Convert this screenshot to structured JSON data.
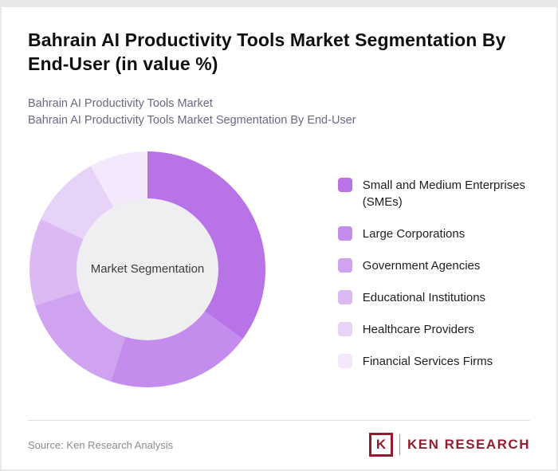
{
  "page": {
    "title": "Bahrain AI Productivity Tools Market Segmentation By End-User (in value %)",
    "subtitle_line1": "Bahrain AI Productivity Tools Market",
    "subtitle_line2": "Bahrain AI Productivity Tools Market Segmentation By End-User"
  },
  "chart_data": {
    "type": "pie",
    "variant": "donut",
    "title": "Bahrain AI Productivity Tools Market Segmentation By End-User (in value %)",
    "center_label": "Market Segmentation",
    "center_color": "#efeff1",
    "legend_position": "right",
    "data_labels_shown": false,
    "series": [
      {
        "name": "Small and Medium Enterprises (SMEs)",
        "value": 35,
        "color": "#b873e6"
      },
      {
        "name": "Large Corporations",
        "value": 20,
        "color": "#c48cec"
      },
      {
        "name": "Government Agencies",
        "value": 15,
        "color": "#cfa3f0"
      },
      {
        "name": "Educational Institutions",
        "value": 12,
        "color": "#dbbaf4"
      },
      {
        "name": "Healthcare Providers",
        "value": 10,
        "color": "#e8d3f8"
      },
      {
        "name": "Financial Services Firms",
        "value": 8,
        "color": "#f4e9fc"
      }
    ]
  },
  "footer": {
    "source": "Source: Ken Research Analysis",
    "logo": {
      "letter": "K",
      "brand": "KEN RESEARCH",
      "color": "#8e1f2e"
    }
  }
}
